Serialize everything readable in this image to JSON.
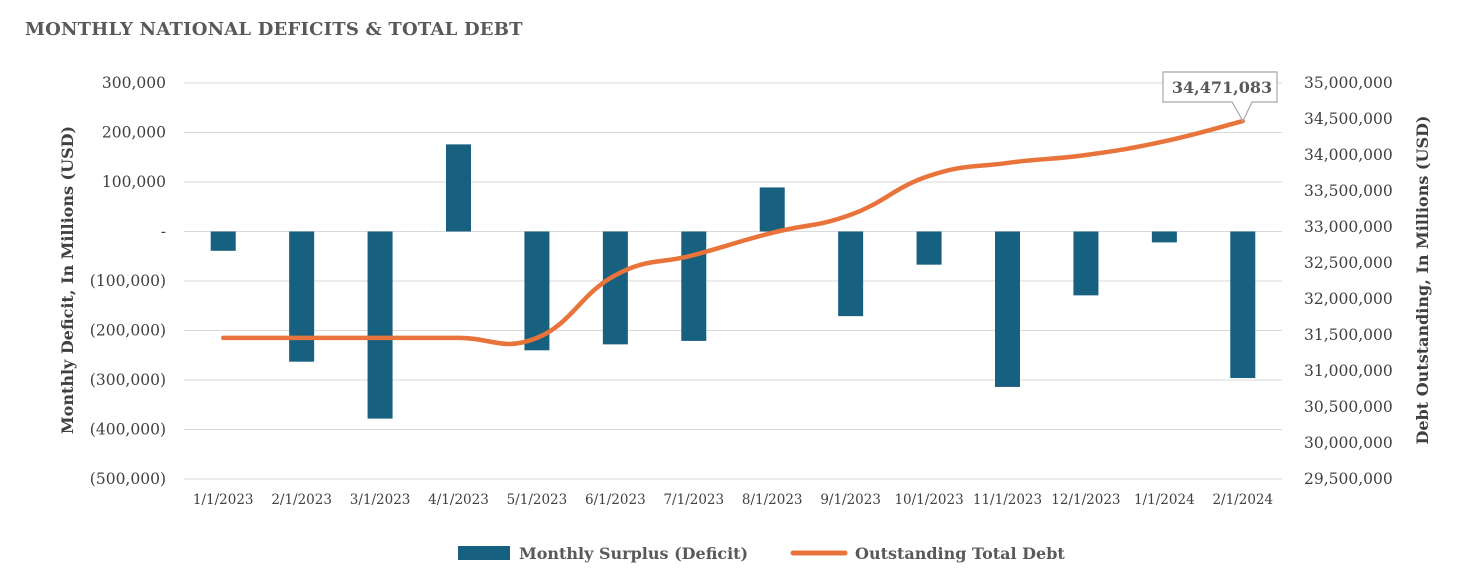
{
  "title": "MONTHLY NATIONAL DEFICITS & TOTAL DEBT",
  "colors": {
    "bar": "#17607f",
    "line": "#e8743b",
    "grid": "#d9d9d9",
    "text": "#404040"
  },
  "chart_data": {
    "type": "bar+line",
    "title": "MONTHLY NATIONAL DEFICITS & TOTAL DEBT",
    "categories": [
      "1/1/2023",
      "2/1/2023",
      "3/1/2023",
      "4/1/2023",
      "5/1/2023",
      "6/1/2023",
      "7/1/2023",
      "8/1/2023",
      "9/1/2023",
      "10/1/2023",
      "11/1/2023",
      "12/1/2023",
      "1/1/2024",
      "2/1/2024"
    ],
    "series": [
      {
        "name": "Monthly Surplus (Deficit)",
        "type": "bar",
        "axis": "left",
        "values": [
          -39000,
          -263000,
          -378000,
          176000,
          -240000,
          -228000,
          -221000,
          89000,
          -171000,
          -67000,
          -314000,
          -129000,
          -22000,
          -296000
        ]
      },
      {
        "name": "Outstanding Total Debt",
        "type": "line",
        "axis": "right",
        "values": [
          31460000,
          31460000,
          31460000,
          31460000,
          31460000,
          32330000,
          32610000,
          32920000,
          33170000,
          33710000,
          33890000,
          34000000,
          34190000,
          34471083
        ]
      }
    ],
    "ylabel": "Monthly Deficit, In Millions (USD)",
    "y2label": "Debt Outstanding, In Millions (USD)",
    "ylim": [
      -500000,
      300000
    ],
    "y2lim": [
      29500000,
      35000000
    ],
    "yticks": [
      "300,000",
      "200,000",
      "100,000",
      "-",
      "(100,000)",
      "(200,000)",
      "(300,000)",
      "(400,000)",
      "(500,000)"
    ],
    "y2ticks": [
      "35,000,000",
      "34,500,000",
      "34,000,000",
      "33,500,000",
      "33,000,000",
      "32,500,000",
      "32,000,000",
      "31,500,000",
      "31,000,000",
      "30,500,000",
      "30,000,000",
      "29,500,000"
    ],
    "annotation": "34,471,083",
    "grid": true,
    "legend": "bottom"
  }
}
